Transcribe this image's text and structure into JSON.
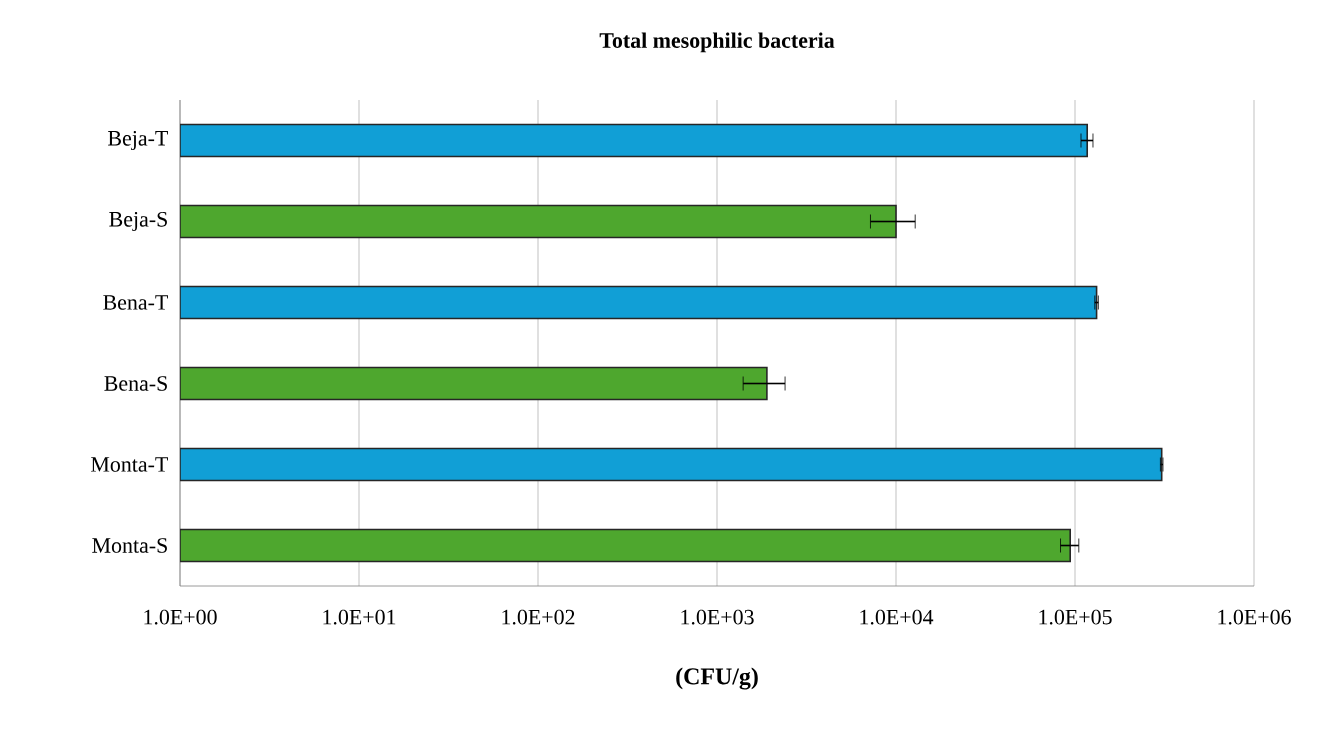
{
  "chart_data": {
    "type": "bar",
    "orientation": "horizontal",
    "title": "Total mesophilic bacteria",
    "xlabel": "(CFU/g)",
    "categories": [
      "Beja-T",
      "Beja-S",
      "Bena-T",
      "Bena-S",
      "Monta-T",
      "Monta-S"
    ],
    "values": [
      117000,
      10000,
      132000,
      1900,
      305000,
      94000
    ],
    "errors": [
      9000,
      2800,
      3000,
      500,
      5000,
      11000
    ],
    "colors": [
      "#119fd6",
      "#4ea72e",
      "#119fd6",
      "#4ea72e",
      "#119fd6",
      "#4ea72e"
    ],
    "log": "x",
    "xlim": [
      1,
      1000000
    ],
    "xticks": [
      {
        "value": 1,
        "label": "1.0E+00"
      },
      {
        "value": 10,
        "label": "1.0E+01"
      },
      {
        "value": 100,
        "label": "1.0E+02"
      },
      {
        "value": 1000,
        "label": "1.0E+03"
      },
      {
        "value": 10000,
        "label": "1.0E+04"
      },
      {
        "value": 100000,
        "label": "1.0E+05"
      },
      {
        "value": 1000000,
        "label": "1.0E+06"
      }
    ],
    "grid": "x"
  }
}
